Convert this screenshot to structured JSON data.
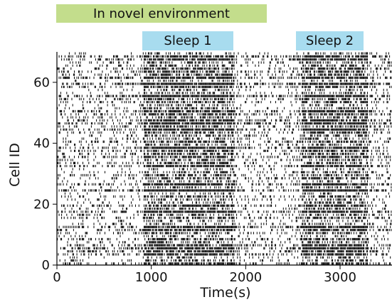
{
  "chart_data": {
    "type": "raster",
    "title": "",
    "xlabel": "Time(s)",
    "ylabel": "Cell ID",
    "xlim": [
      0,
      3550
    ],
    "ylim": [
      0,
      70
    ],
    "xticks": [
      0,
      1000,
      2000,
      3000
    ],
    "yticks": [
      0,
      20,
      40,
      60
    ],
    "n_cells": 70,
    "periods": [
      {
        "label": "In novel environment",
        "start": 0,
        "end": 2270,
        "color": "#c3dd8c"
      },
      {
        "label": "Sleep 1",
        "start": 920,
        "end": 1880,
        "color": "#a8dcef"
      },
      {
        "label": "Sleep 2",
        "start": 2590,
        "end": 3290,
        "color": "#a8dcef"
      }
    ],
    "spike_color": "#000000"
  }
}
